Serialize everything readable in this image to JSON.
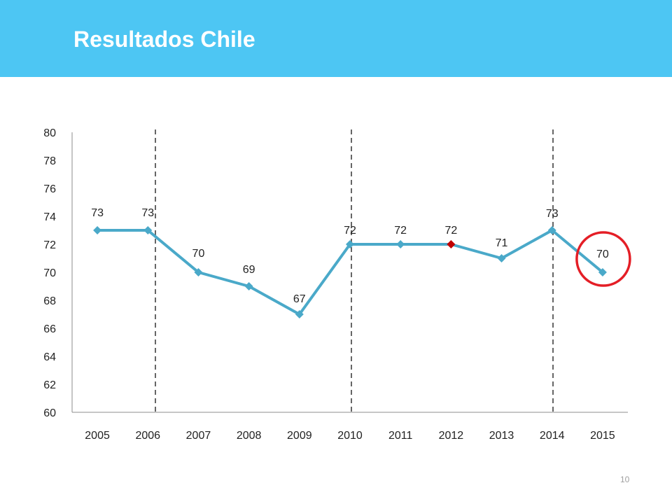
{
  "slide": {
    "title": "Resultados Chile",
    "page_number": "10"
  },
  "chart_data": {
    "type": "line",
    "title": "",
    "xlabel": "",
    "ylabel": "",
    "categories": [
      "2005",
      "2006",
      "2007",
      "2008",
      "2009",
      "2010",
      "2011",
      "2012",
      "2013",
      "2014",
      "2015"
    ],
    "series": [
      {
        "values": [
          73,
          73,
          70,
          69,
          67,
          72,
          72,
          72,
          71,
          73,
          70
        ],
        "color": "#4aa9c9",
        "highlight_index": 7,
        "highlight_color": "#c00000"
      }
    ],
    "data_labels": [
      "73",
      "73",
      "70",
      "69",
      "67",
      "72",
      "72",
      "72",
      "71",
      "73",
      "70"
    ],
    "ylim": [
      60,
      80
    ],
    "yticks": [
      "60",
      "62",
      "64",
      "66",
      "68",
      "70",
      "72",
      "74",
      "76",
      "78",
      "80"
    ],
    "grid": false,
    "legend": "none",
    "dashed_markers_between": [
      [
        "2006",
        "2006"
      ],
      [
        "2010",
        "2010"
      ],
      [
        "2014",
        "2014"
      ]
    ],
    "circled_category": "2015",
    "circle_color": "#e41e26"
  }
}
